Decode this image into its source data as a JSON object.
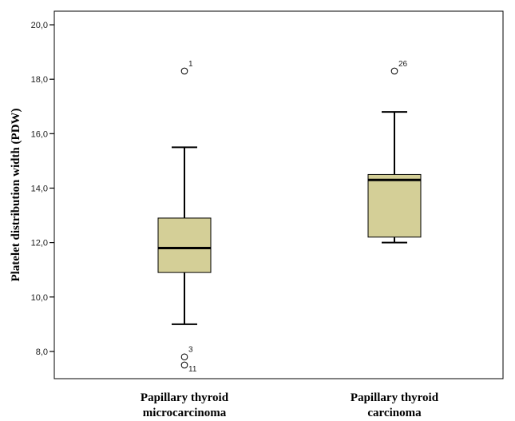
{
  "chart_data": {
    "type": "boxplot",
    "title": "",
    "xlabel": "",
    "ylabel": "Platelet distribution width (PDW)",
    "ylim": [
      7.0,
      20.5
    ],
    "yticks": [
      8.0,
      10.0,
      12.0,
      14.0,
      16.0,
      18.0,
      20.0
    ],
    "ytick_labels": [
      "8,0",
      "10,0",
      "12,0",
      "14,0",
      "16,0",
      "18,0",
      "20,0"
    ],
    "grid": false,
    "box_color": "#d4cf97",
    "categories": [
      [
        "Papillary thyroid",
        "microcarcinoma"
      ],
      [
        "Papillary thyroid",
        "carcinoma"
      ]
    ],
    "boxes": [
      {
        "whisker_low": 9.0,
        "q1": 10.9,
        "median": 11.8,
        "q3": 12.9,
        "whisker_high": 15.5,
        "outliers": [
          {
            "value": 18.3,
            "label": "1"
          },
          {
            "value": 7.8,
            "label": "3"
          },
          {
            "value": 7.5,
            "label": "11"
          }
        ]
      },
      {
        "whisker_low": 12.0,
        "q1": 12.2,
        "median": 14.3,
        "q3": 14.5,
        "whisker_high": 16.8,
        "outliers": [
          {
            "value": 18.3,
            "label": "26"
          }
        ]
      }
    ]
  }
}
